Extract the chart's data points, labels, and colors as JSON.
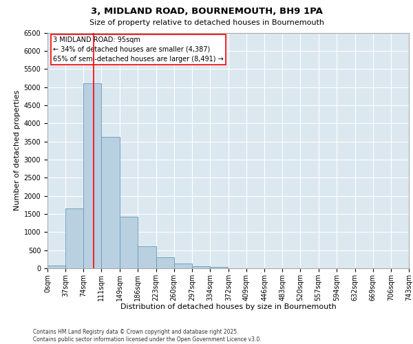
{
  "title_line1": "3, MIDLAND ROAD, BOURNEMOUTH, BH9 1PA",
  "title_line2": "Size of property relative to detached houses in Bournemouth",
  "xlabel": "Distribution of detached houses by size in Bournemouth",
  "ylabel": "Number of detached properties",
  "bar_color": "#b8d0e0",
  "bar_edge_color": "#6699bb",
  "background_color": "#dce8f0",
  "grid_color": "#ffffff",
  "property_line_x": 95,
  "property_line_color": "red",
  "annotation_text": "3 MIDLAND ROAD: 95sqm\n← 34% of detached houses are smaller (4,387)\n65% of semi-detached houses are larger (8,491) →",
  "footer_text": "Contains HM Land Registry data © Crown copyright and database right 2025.\nContains public sector information licensed under the Open Government Licence v3.0.",
  "bin_edges": [
    0,
    37,
    74,
    111,
    149,
    186,
    223,
    260,
    297,
    334,
    372,
    409,
    446,
    483,
    520,
    557,
    594,
    632,
    669,
    706,
    743
  ],
  "bin_labels": [
    "0sqm",
    "37sqm",
    "74sqm",
    "111sqm",
    "149sqm",
    "186sqm",
    "223sqm",
    "260sqm",
    "297sqm",
    "334sqm",
    "372sqm",
    "409sqm",
    "446sqm",
    "483sqm",
    "520sqm",
    "557sqm",
    "594sqm",
    "632sqm",
    "669sqm",
    "706sqm",
    "743sqm"
  ],
  "bar_heights": [
    80,
    1650,
    5100,
    3620,
    1420,
    610,
    300,
    130,
    65,
    40,
    0,
    0,
    0,
    0,
    0,
    0,
    0,
    0,
    0,
    0
  ],
  "ylim": [
    0,
    6500
  ],
  "yticks": [
    0,
    500,
    1000,
    1500,
    2000,
    2500,
    3000,
    3500,
    4000,
    4500,
    5000,
    5500,
    6000,
    6500
  ],
  "fig_bg": "#ffffff",
  "title1_fontsize": 9.5,
  "title2_fontsize": 8,
  "xlabel_fontsize": 8,
  "ylabel_fontsize": 8,
  "tick_fontsize": 7,
  "annot_fontsize": 7,
  "footer_fontsize": 5.5
}
